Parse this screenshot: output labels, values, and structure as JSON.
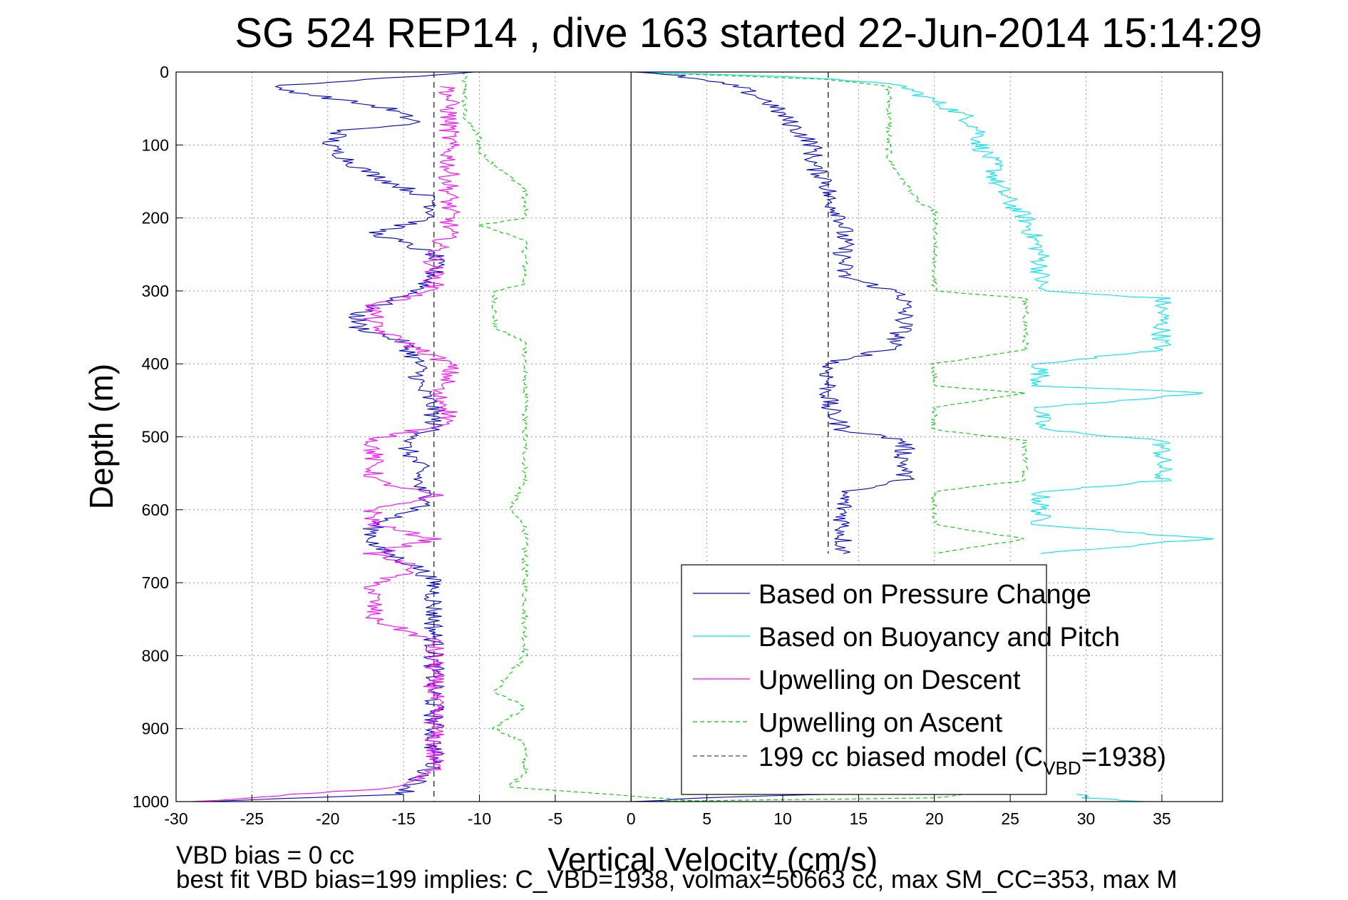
{
  "chart_data": {
    "type": "line",
    "title": "SG 524   REP14  , dive 163 started 22-Jun-2014 15:14:29",
    "xlabel": "Vertical Velocity (cm/s)",
    "ylabel": "Depth (m)",
    "xlim": [
      -30,
      39
    ],
    "ylim": [
      0,
      1000
    ],
    "y_reversed": true,
    "xticks": [
      -30,
      -25,
      -20,
      -15,
      -10,
      -5,
      0,
      5,
      10,
      15,
      20,
      25,
      30,
      35
    ],
    "yticks": [
      0,
      100,
      200,
      300,
      400,
      500,
      600,
      700,
      800,
      900,
      1000
    ],
    "grid": true,
    "legend_position": "bottom-right",
    "colors": {
      "pressure": "#0000cc",
      "buoyancy": "#00e5ee",
      "descent": "#ff00ff",
      "ascent": "#00cc00",
      "model": "#444444"
    },
    "series": [
      {
        "name": "Based on Pressure Change",
        "key": "pressure",
        "segments": [
          {
            "depth": [
              0,
              20,
              50,
              70,
              80,
              100,
              130,
              150,
              175,
              200,
              220,
              250,
              280,
              300,
              330,
              350,
              370,
              400,
              430,
              460,
              490,
              510,
              540,
              570,
              590,
              620,
              650,
              680,
              700,
              750,
              800,
              850,
              900,
              950,
              990,
              1000
            ],
            "v": [
              -10,
              -24,
              -16,
              -14,
              -19,
              -20,
              -18,
              -16,
              -13,
              -13,
              -17,
              -13,
              -13,
              -14,
              -18,
              -18,
              -15,
              -14,
              -14,
              -13,
              -13,
              -15,
              -14,
              -14,
              -13,
              -17,
              -17,
              -14,
              -13,
              -13,
              -13,
              -13,
              -13,
              -13,
              -15,
              -28
            ]
          },
          {
            "depth": [
              0,
              5,
              20,
              40,
              60,
              80,
              100,
              130,
              150,
              175,
              200,
              220,
              250,
              280,
              305,
              330,
              350,
              380,
              400,
              430,
              460,
              490,
              505,
              530,
              560,
              575,
              590,
              620,
              650,
              660
            ],
            "v": [
              0,
              3,
              7,
              9,
              10,
              11,
              12,
              12,
              13,
              13,
              14,
              14,
              14,
              14,
              18,
              18,
              18,
              17,
              13,
              13,
              13,
              14,
              18,
              18,
              18,
              14,
              14,
              14,
              14,
              14
            ]
          },
          {
            "depth": [
              990,
              995,
              1000
            ],
            "v": [
              13,
              5,
              0
            ]
          }
        ]
      },
      {
        "name": "Based on Buoyancy and Pitch",
        "key": "buoyancy",
        "segments": [
          {
            "depth": [
              0,
              5,
              10,
              20,
              40,
              60,
              80,
              100,
              130,
              150,
              180,
              200,
              250,
              300,
              310,
              350,
              380,
              400,
              430,
              440,
              460,
              490,
              505,
              530,
              560,
              575,
              590,
              620,
              640,
              660
            ],
            "v": [
              0,
              8,
              14,
              18,
              20,
              22,
              23,
              23,
              24,
              24,
              25,
              26,
              27,
              27,
              35,
              35,
              35,
              27,
              27,
              38,
              27,
              27,
              35,
              35,
              35,
              27,
              27,
              27,
              38,
              27
            ]
          },
          {
            "depth": [
              990,
              995,
              1000
            ],
            "v": [
              30,
              30,
              34
            ]
          }
        ]
      },
      {
        "name": "Upwelling on Descent",
        "key": "descent",
        "segments": [
          {
            "depth": [
              20,
              40,
              60,
              80,
              100,
              120,
              140,
              160,
              190,
              220,
              250,
              280,
              300,
              320,
              350,
              380,
              400,
              420,
              440,
              460,
              480,
              505,
              530,
              560,
              580,
              600,
              620,
              640,
              660,
              680,
              700,
              750,
              780,
              800,
              830,
              850,
              880,
              900,
              930,
              960,
              980,
              1000
            ],
            "v": [
              -12,
              -12,
              -12,
              -12,
              -12,
              -12,
              -12,
              -12,
              -12,
              -12,
              -13,
              -13,
              -13,
              -17,
              -17,
              -14,
              -12,
              -12,
              -13,
              -12,
              -12,
              -17,
              -17,
              -17,
              -13,
              -17,
              -17,
              -13,
              -17,
              -14,
              -17,
              -17,
              -13,
              -13,
              -13,
              -13,
              -13,
              -13,
              -13,
              -13,
              -15,
              -29
            ]
          }
        ]
      },
      {
        "name": "Upwelling on Ascent",
        "key": "ascent",
        "dashed": true,
        "segments": [
          {
            "depth": [
              0,
              30,
              60,
              90,
              110,
              160,
              200,
              210,
              230,
              290,
              300,
              350,
              370,
              420,
              500,
              530,
              560,
              600,
              620,
              640,
              700,
              750,
              800,
              850,
              870,
              900,
              920,
              960,
              980,
              1000
            ],
            "v": [
              -11,
              -11,
              -11,
              -10,
              -10,
              -7,
              -7,
              -10,
              -7,
              -7,
              -9,
              -9,
              -7,
              -7,
              -7,
              -7,
              -7,
              -8,
              -7,
              -7,
              -7,
              -7,
              -7,
              -9,
              -7,
              -9,
              -7,
              -7,
              -8,
              5
            ]
          },
          {
            "depth": [
              0,
              10,
              20,
              50,
              60,
              80,
              90,
              120,
              150,
              180,
              190,
              200,
              250,
              300,
              310,
              350,
              380,
              400,
              430,
              440,
              460,
              490,
              505,
              530,
              560,
              575,
              590,
              620,
              640,
              660
            ],
            "v": [
              0,
              13,
              17,
              17,
              17,
              17,
              17,
              17,
              18,
              19,
              20,
              20,
              20,
              20,
              26,
              26,
              26,
              20,
              20,
              26,
              20,
              20,
              26,
              26,
              26,
              20,
              20,
              20,
              26,
              20
            ]
          },
          {
            "depth": [
              990,
              995,
              1000
            ],
            "v": [
              22,
              20,
              0
            ]
          }
        ]
      },
      {
        "name": "199 cc biased model (C",
        "name_sub": "VBD",
        "name_tail": "=1938)",
        "key": "model",
        "dashed": true,
        "segments": [
          {
            "depth": [
              0,
              1000
            ],
            "v": [
              -13,
              -13
            ]
          },
          {
            "depth": [
              0,
              660
            ],
            "v": [
              13,
              13
            ]
          }
        ]
      }
    ],
    "annotations": [
      "VBD bias = 0 cc",
      "best fit VBD bias=199 implies: C_VBD=1938, volmax=50663 cc, max SM_CC=353, max M"
    ]
  }
}
